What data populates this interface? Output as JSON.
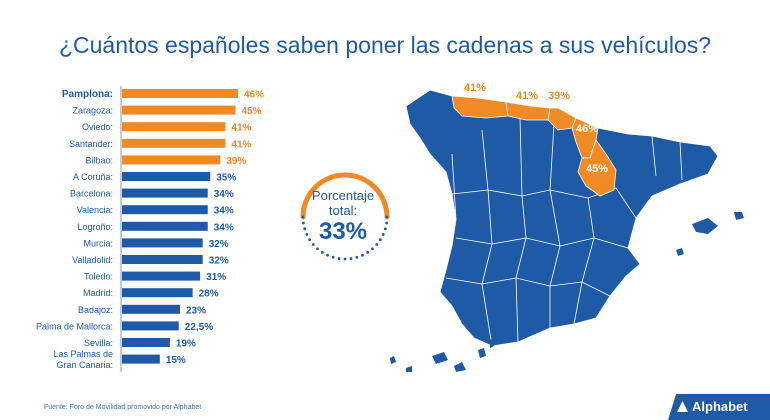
{
  "title": "¿Cuántos españoles saben poner las cadenas a sus vehículos?",
  "colors": {
    "highlight": "#f08a24",
    "base": "#1f5aa6",
    "text": "#1f5aa6"
  },
  "chart_data": {
    "type": "bar",
    "orientation": "horizontal",
    "title": "",
    "xlabel": "",
    "ylabel": "",
    "xlim": [
      0,
      46
    ],
    "categories": [
      "Pamplona:",
      "Zaragoza:",
      "Oviedo:",
      "Santander:",
      "Bilbao:",
      "A Coruña:",
      "Barcelona:",
      "Valencia:",
      "Logroño:",
      "Murcia:",
      "Valladolid:",
      "Toledo:",
      "Madrid:",
      "Badajoz:",
      "Palma de Mallorca:",
      "Sevilla:",
      "Las Palmas de\nGran Canaria:"
    ],
    "values": [
      46,
      45,
      41,
      41,
      39,
      35,
      34,
      34,
      34,
      32,
      32,
      31,
      28,
      23,
      22.5,
      19,
      15
    ],
    "value_labels": [
      "46%",
      "45%",
      "41%",
      "41%",
      "39%",
      "35%",
      "34%",
      "34%",
      "34%",
      "32%",
      "32%",
      "31%",
      "28%",
      "23%",
      "22,5%",
      "19%",
      "15%"
    ],
    "highlighted": [
      true,
      true,
      true,
      true,
      true,
      false,
      false,
      false,
      false,
      false,
      false,
      false,
      false,
      false,
      false,
      false,
      false
    ],
    "bold_labels": [
      true,
      false,
      false,
      false,
      false,
      false,
      false,
      false,
      false,
      false,
      false,
      false,
      false,
      false,
      false,
      false,
      false
    ],
    "grid": false,
    "legend": "none"
  },
  "gauge": {
    "caption_line1": "Porcentaje",
    "caption_line2": "total:",
    "value": "33%",
    "fraction": 0.33
  },
  "map": {
    "labels": [
      "41%",
      "41%",
      "39%",
      "46%",
      "45%"
    ]
  },
  "source": "Fuente: Foro de Movilidad promovido por Alphabet",
  "logo": "Alphabet"
}
